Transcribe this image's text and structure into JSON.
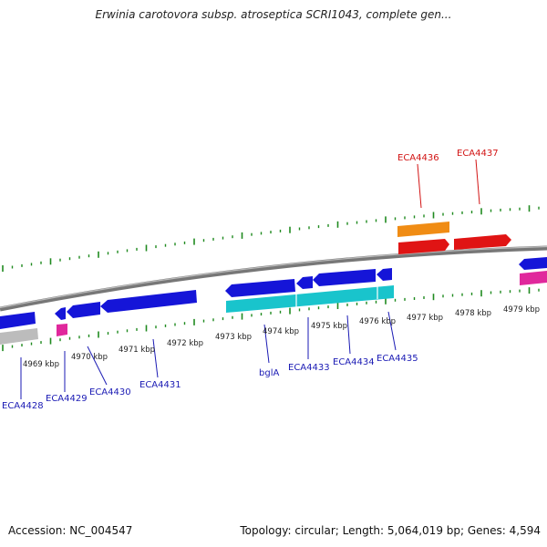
{
  "title": "Erwinia carotovora subsp. atroseptica SCRI1043, complete gen...",
  "footer": {
    "accession": "Accession: NC_004547",
    "summary": "Topology: circular; Length: 5,064,019 bp; Genes: 4,594"
  },
  "colors": {
    "forward_gene": "#1515d8",
    "reverse_gene": "#1515d8",
    "cds_cyan": "#19c4cc",
    "pink": "#e0289c",
    "red": "#e01414",
    "orange": "#f08c14",
    "gray": "#bcbcbc",
    "tick": "#1f8a1f",
    "backbone": "#777777",
    "label_blue": "#1a1ab4",
    "label_red": "#d21414"
  },
  "ticks": [
    "4969 kbp",
    "4970 kbp",
    "4971 kbp",
    "4972 kbp",
    "4973 kbp",
    "4974 kbp",
    "4975 kbp",
    "4976 kbp",
    "4977 kbp",
    "4978 kbp",
    "4979 kbp"
  ],
  "gene_labels": {
    "bottom": [
      "ECA4428",
      "ECA4429",
      "ECA4430",
      "ECA4431",
      "bglA",
      "ECA4433",
      "ECA4434",
      "ECA4435"
    ],
    "top": [
      "ECA4436",
      "ECA4437"
    ]
  }
}
